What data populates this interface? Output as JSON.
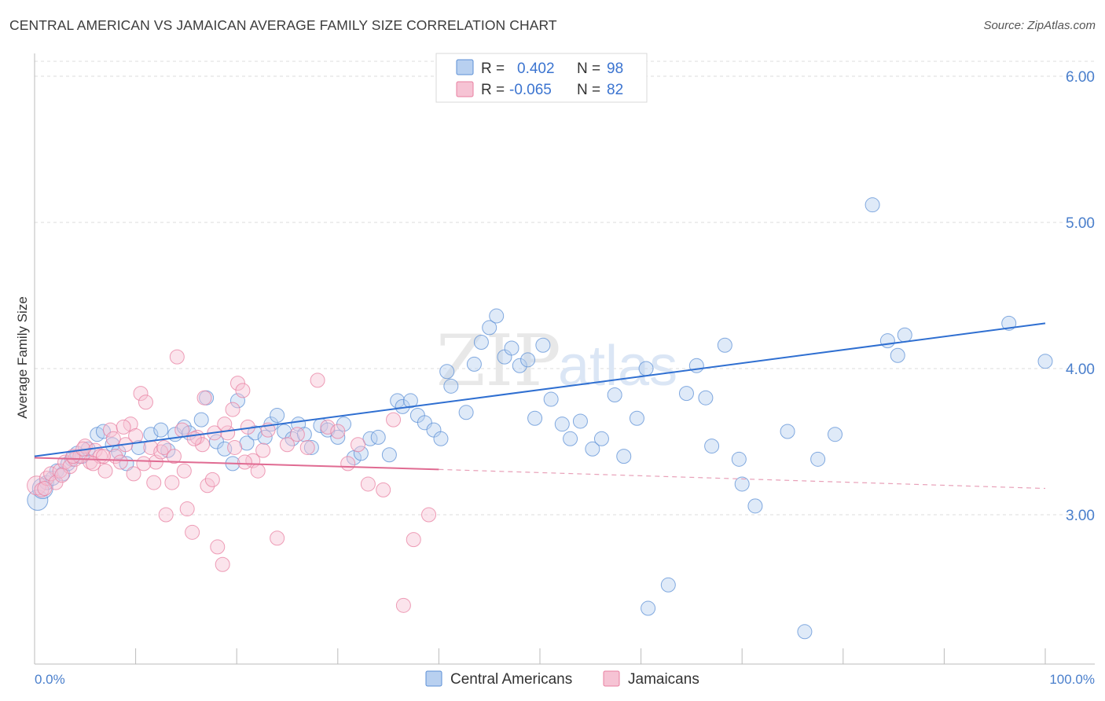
{
  "title": "CENTRAL AMERICAN VS JAMAICAN AVERAGE FAMILY SIZE CORRELATION CHART",
  "source": "Source: ZipAtlas.com",
  "watermark": "ZIPatlas",
  "legend": {
    "rows": [
      {
        "r_label": "R =",
        "r_value": "0.402",
        "n_label": "N =",
        "n_value": "98",
        "color": "#5b8fd6",
        "fill": "#b8d0f0"
      },
      {
        "r_label": "R =",
        "r_value": "-0.065",
        "n_label": "N =",
        "n_value": "82",
        "color": "#e87fa0",
        "fill": "#f6c3d4"
      }
    ]
  },
  "chart_data": {
    "type": "scatter",
    "title": "CENTRAL AMERICAN VS JAMAICAN AVERAGE FAMILY SIZE CORRELATION CHART",
    "xlabel": "",
    "ylabel": "Average Family Size",
    "xlim": [
      0,
      100
    ],
    "ylim": [
      2.0,
      6.1
    ],
    "x_tick_labels": [
      "0.0%",
      "100.0%"
    ],
    "y_ticks": [
      3.0,
      4.0,
      5.0,
      6.0
    ],
    "y_tick_labels": [
      "3.00",
      "4.00",
      "5.00",
      "6.00"
    ],
    "grid": "horizontal dashed",
    "legend_position": "top-center",
    "series": [
      {
        "name": "Central Americans",
        "color": "#5b8fd6",
        "fill": "#b8d0f0",
        "trend": {
          "x0": 0,
          "y0": 3.4,
          "x1": 100,
          "y1": 4.31
        },
        "points": [
          [
            0.3,
            3.1
          ],
          [
            0.8,
            3.18
          ],
          [
            1.2,
            3.22
          ],
          [
            1.8,
            3.25
          ],
          [
            2.2,
            3.3
          ],
          [
            2.8,
            3.28
          ],
          [
            3.3,
            3.35
          ],
          [
            3.7,
            3.38
          ],
          [
            4.2,
            3.42
          ],
          [
            4.7,
            3.4
          ],
          [
            5.3,
            3.45
          ],
          [
            6.2,
            3.55
          ],
          [
            6.8,
            3.57
          ],
          [
            7.7,
            3.48
          ],
          [
            8.3,
            3.43
          ],
          [
            9.1,
            3.35
          ],
          [
            10.3,
            3.46
          ],
          [
            11.5,
            3.55
          ],
          [
            12.5,
            3.58
          ],
          [
            13.2,
            3.44
          ],
          [
            13.9,
            3.55
          ],
          [
            14.8,
            3.6
          ],
          [
            15.3,
            3.56
          ],
          [
            16.5,
            3.65
          ],
          [
            17.0,
            3.8
          ],
          [
            18.0,
            3.5
          ],
          [
            18.8,
            3.45
          ],
          [
            19.6,
            3.35
          ],
          [
            20.1,
            3.78
          ],
          [
            21.0,
            3.49
          ],
          [
            21.8,
            3.56
          ],
          [
            22.8,
            3.53
          ],
          [
            23.4,
            3.62
          ],
          [
            24.0,
            3.68
          ],
          [
            24.7,
            3.57
          ],
          [
            25.5,
            3.52
          ],
          [
            26.1,
            3.62
          ],
          [
            26.7,
            3.55
          ],
          [
            27.4,
            3.46
          ],
          [
            28.3,
            3.61
          ],
          [
            29.0,
            3.58
          ],
          [
            30.0,
            3.53
          ],
          [
            30.6,
            3.62
          ],
          [
            31.6,
            3.39
          ],
          [
            32.3,
            3.42
          ],
          [
            33.2,
            3.52
          ],
          [
            34.0,
            3.53
          ],
          [
            35.1,
            3.41
          ],
          [
            35.9,
            3.78
          ],
          [
            36.4,
            3.74
          ],
          [
            37.2,
            3.78
          ],
          [
            37.9,
            3.68
          ],
          [
            38.6,
            3.63
          ],
          [
            39.5,
            3.58
          ],
          [
            40.2,
            3.52
          ],
          [
            40.8,
            3.98
          ],
          [
            41.2,
            3.88
          ],
          [
            42.7,
            3.7
          ],
          [
            43.5,
            4.03
          ],
          [
            44.2,
            4.18
          ],
          [
            45.0,
            4.28
          ],
          [
            45.7,
            4.36
          ],
          [
            46.5,
            4.08
          ],
          [
            47.2,
            4.14
          ],
          [
            48.0,
            4.02
          ],
          [
            48.8,
            4.06
          ],
          [
            49.5,
            3.66
          ],
          [
            50.3,
            4.16
          ],
          [
            51.1,
            3.79
          ],
          [
            52.2,
            3.62
          ],
          [
            53.0,
            3.52
          ],
          [
            54.0,
            3.64
          ],
          [
            55.2,
            3.45
          ],
          [
            56.1,
            3.52
          ],
          [
            57.4,
            3.82
          ],
          [
            58.3,
            3.4
          ],
          [
            59.6,
            3.66
          ],
          [
            60.5,
            4.0
          ],
          [
            60.7,
            2.36
          ],
          [
            62.7,
            2.52
          ],
          [
            64.5,
            3.83
          ],
          [
            65.5,
            4.02
          ],
          [
            66.4,
            3.8
          ],
          [
            67.0,
            3.47
          ],
          [
            68.3,
            4.16
          ],
          [
            69.7,
            3.38
          ],
          [
            70.0,
            3.21
          ],
          [
            71.3,
            3.06
          ],
          [
            74.5,
            3.57
          ],
          [
            76.2,
            2.2
          ],
          [
            77.5,
            3.38
          ],
          [
            79.2,
            3.55
          ],
          [
            82.9,
            5.12
          ],
          [
            84.4,
            4.19
          ],
          [
            85.4,
            4.09
          ],
          [
            86.1,
            4.23
          ],
          [
            96.4,
            4.31
          ],
          [
            100.0,
            4.05
          ]
        ]
      },
      {
        "name": "Jamaicans",
        "color": "#e87fa0",
        "fill": "#f6c3d4",
        "trend": {
          "x0": 0,
          "y0": 3.39,
          "x1": 40,
          "y1": 3.31,
          "dash_to_x": 100,
          "dash_to_y": 3.18
        },
        "points": [
          [
            0.2,
            3.2
          ],
          [
            0.7,
            3.17
          ],
          [
            1.2,
            3.25
          ],
          [
            1.6,
            3.28
          ],
          [
            2.1,
            3.22
          ],
          [
            2.5,
            3.3
          ],
          [
            3.0,
            3.36
          ],
          [
            3.5,
            3.33
          ],
          [
            4.0,
            3.38
          ],
          [
            4.5,
            3.4
          ],
          [
            5.0,
            3.47
          ],
          [
            5.5,
            3.36
          ],
          [
            6.0,
            3.44
          ],
          [
            6.5,
            3.4
          ],
          [
            7.0,
            3.3
          ],
          [
            7.5,
            3.58
          ],
          [
            8.0,
            3.4
          ],
          [
            8.5,
            3.36
          ],
          [
            9.0,
            3.48
          ],
          [
            9.5,
            3.62
          ],
          [
            10.0,
            3.54
          ],
          [
            10.5,
            3.83
          ],
          [
            11.0,
            3.77
          ],
          [
            11.5,
            3.46
          ],
          [
            12.0,
            3.36
          ],
          [
            12.5,
            3.43
          ],
          [
            13.0,
            3.0
          ],
          [
            13.6,
            3.22
          ],
          [
            14.1,
            4.08
          ],
          [
            14.6,
            3.58
          ],
          [
            15.1,
            3.04
          ],
          [
            15.6,
            2.88
          ],
          [
            16.1,
            3.53
          ],
          [
            16.6,
            3.48
          ],
          [
            17.1,
            3.2
          ],
          [
            17.6,
            3.24
          ],
          [
            18.1,
            2.78
          ],
          [
            18.6,
            2.66
          ],
          [
            19.1,
            3.56
          ],
          [
            19.6,
            3.72
          ],
          [
            20.1,
            3.9
          ],
          [
            20.6,
            3.85
          ],
          [
            21.1,
            3.6
          ],
          [
            21.6,
            3.37
          ],
          [
            22.1,
            3.3
          ],
          [
            22.6,
            3.44
          ],
          [
            23.1,
            3.58
          ],
          [
            24.0,
            2.84
          ],
          [
            25.0,
            3.48
          ],
          [
            26.0,
            3.55
          ],
          [
            27.0,
            3.46
          ],
          [
            28.0,
            3.92
          ],
          [
            29.0,
            3.6
          ],
          [
            30.0,
            3.57
          ],
          [
            31.0,
            3.35
          ],
          [
            32.0,
            3.48
          ],
          [
            33.0,
            3.21
          ],
          [
            34.5,
            3.17
          ],
          [
            35.5,
            3.65
          ],
          [
            36.5,
            2.38
          ],
          [
            37.5,
            2.83
          ],
          [
            39.0,
            3.0
          ],
          [
            1.0,
            3.18
          ],
          [
            2.7,
            3.27
          ],
          [
            3.8,
            3.4
          ],
          [
            4.8,
            3.45
          ],
          [
            5.8,
            3.35
          ],
          [
            6.8,
            3.4
          ],
          [
            7.8,
            3.52
          ],
          [
            8.8,
            3.6
          ],
          [
            9.8,
            3.28
          ],
          [
            10.8,
            3.35
          ],
          [
            11.8,
            3.22
          ],
          [
            12.8,
            3.46
          ],
          [
            13.8,
            3.4
          ],
          [
            14.8,
            3.3
          ],
          [
            15.8,
            3.52
          ],
          [
            16.8,
            3.8
          ],
          [
            17.8,
            3.56
          ],
          [
            18.8,
            3.62
          ],
          [
            19.8,
            3.46
          ],
          [
            20.8,
            3.36
          ]
        ]
      }
    ]
  },
  "bottom_legend": [
    {
      "label": "Central Americans",
      "color": "#5b8fd6",
      "fill": "#b8d0f0"
    },
    {
      "label": "Jamaicans",
      "color": "#e87fa0",
      "fill": "#f6c3d4"
    }
  ]
}
